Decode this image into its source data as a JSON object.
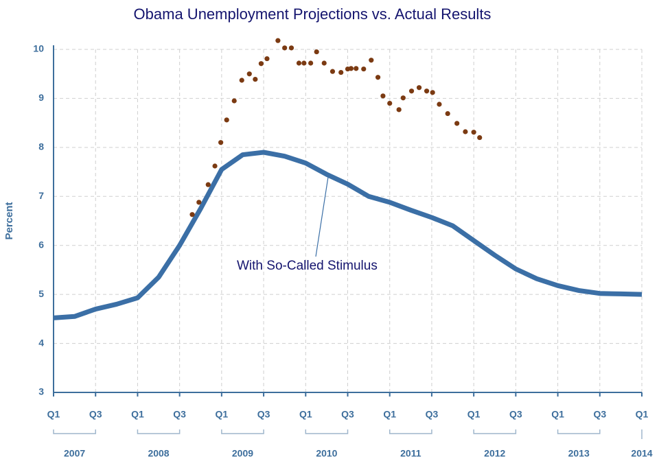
{
  "chart_data": {
    "type": "line",
    "title": "Obama Unemployment Projections vs. Actual Results",
    "y_label": "Percent",
    "xlim": [
      2007,
      2014
    ],
    "ylim": [
      3,
      10
    ],
    "yticks": [
      3,
      4,
      5,
      6,
      7,
      8,
      9,
      10
    ],
    "xticks": [
      {
        "value": 2007,
        "label": "Q1"
      },
      {
        "value": 2007.5,
        "label": "Q3"
      },
      {
        "value": 2008,
        "label": "Q1"
      },
      {
        "value": 2008.5,
        "label": "Q3"
      },
      {
        "value": 2009,
        "label": "Q1"
      },
      {
        "value": 2009.5,
        "label": "Q3"
      },
      {
        "value": 2010,
        "label": "Q1"
      },
      {
        "value": 2010.5,
        "label": "Q3"
      },
      {
        "value": 2011,
        "label": "Q1"
      },
      {
        "value": 2011.5,
        "label": "Q3"
      },
      {
        "value": 2012,
        "label": "Q1"
      },
      {
        "value": 2012.5,
        "label": "Q3"
      },
      {
        "value": 2013,
        "label": "Q1"
      },
      {
        "value": 2013.5,
        "label": "Q3"
      },
      {
        "value": 2014,
        "label": "Q1"
      }
    ],
    "year_ticks": [
      {
        "value": 2007.25,
        "label": "2007"
      },
      {
        "value": 2008.25,
        "label": "2008"
      },
      {
        "value": 2009.25,
        "label": "2009"
      },
      {
        "value": 2010.25,
        "label": "2010"
      },
      {
        "value": 2011.25,
        "label": "2011"
      },
      {
        "value": 2012.25,
        "label": "2012"
      },
      {
        "value": 2013.25,
        "label": "2013"
      },
      {
        "value": 2014,
        "label": "2014"
      }
    ],
    "grid": true,
    "series": [
      {
        "name": "With So-Called Stimulus",
        "kind": "line",
        "color": "#3b6fa6",
        "x": [
          2007,
          2007.25,
          2007.5,
          2007.75,
          2008,
          2008.25,
          2008.5,
          2008.75,
          2009,
          2009.25,
          2009.5,
          2009.75,
          2010,
          2010.25,
          2010.5,
          2010.75,
          2011,
          2011.25,
          2011.5,
          2011.75,
          2012,
          2012.25,
          2012.5,
          2012.75,
          2013,
          2013.25,
          2013.5,
          2013.75,
          2014
        ],
        "values": [
          4.52,
          4.55,
          4.7,
          4.8,
          4.93,
          5.35,
          6.0,
          6.75,
          7.55,
          7.85,
          7.9,
          7.82,
          7.68,
          7.45,
          7.25,
          7.0,
          6.88,
          6.72,
          6.57,
          6.4,
          6.1,
          5.8,
          5.52,
          5.32,
          5.18,
          5.08,
          5.02,
          5.01,
          5.0
        ]
      },
      {
        "kind": "scatter",
        "color": "#7b3a12",
        "x": [
          2008.65,
          2008.73,
          2008.84,
          2008.92,
          2008.99,
          2009.06,
          2009.15,
          2009.24,
          2009.33,
          2009.4,
          2009.47,
          2009.54,
          2009.67,
          2009.75,
          2009.83,
          2009.92,
          2009.98,
          2010.06,
          2010.13,
          2010.22,
          2010.32,
          2010.42,
          2010.5,
          2010.54,
          2010.6,
          2010.69,
          2010.78,
          2010.86,
          2010.92,
          2011.0,
          2011.11,
          2011.16,
          2011.26,
          2011.35,
          2011.44,
          2011.51,
          2011.59,
          2011.69,
          2011.8,
          2011.9,
          2012.0,
          2012.07
        ],
        "values": [
          6.63,
          6.88,
          7.24,
          7.62,
          8.1,
          8.56,
          8.95,
          9.37,
          9.5,
          9.39,
          9.71,
          9.81,
          10.18,
          10.03,
          10.03,
          9.72,
          9.72,
          9.72,
          9.95,
          9.72,
          9.55,
          9.53,
          9.6,
          9.61,
          9.61,
          9.6,
          9.78,
          9.43,
          9.05,
          8.9,
          8.77,
          9.01,
          9.15,
          9.22,
          9.15,
          9.12,
          8.88,
          8.69,
          8.49,
          8.32,
          8.31,
          8.2
        ]
      }
    ]
  }
}
